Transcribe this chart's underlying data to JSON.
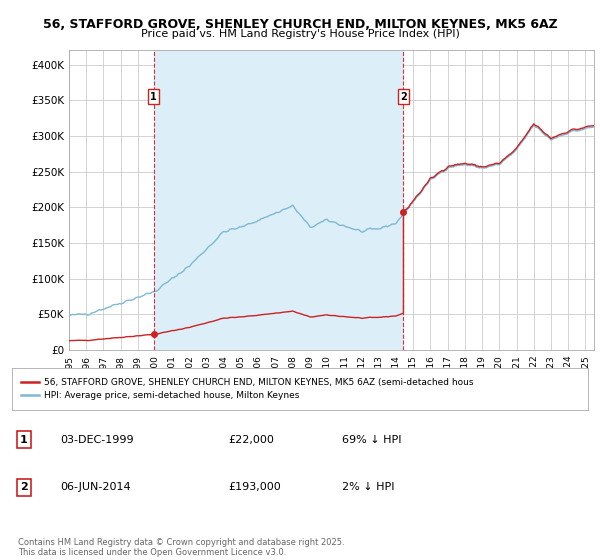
{
  "title": "56, STAFFORD GROVE, SHENLEY CHURCH END, MILTON KEYNES, MK5 6AZ",
  "subtitle": "Price paid vs. HM Land Registry's House Price Index (HPI)",
  "ylim": [
    0,
    420000
  ],
  "yticks": [
    0,
    50000,
    100000,
    150000,
    200000,
    250000,
    300000,
    350000,
    400000
  ],
  "ytick_labels": [
    "£0",
    "£50K",
    "£100K",
    "£150K",
    "£200K",
    "£250K",
    "£300K",
    "£350K",
    "£400K"
  ],
  "hpi_color": "#7eb8d4",
  "hpi_fill_color": "#dceef7",
  "price_color": "#cc2222",
  "dashed_color": "#cc2222",
  "purchase1_date": 1999.92,
  "purchase1_price": 22000,
  "purchase2_date": 2014.43,
  "purchase2_price": 193000,
  "legend_text1": "56, STAFFORD GROVE, SHENLEY CHURCH END, MILTON KEYNES, MK5 6AZ (semi-detached hous",
  "legend_text2": "HPI: Average price, semi-detached house, Milton Keynes",
  "table_row1": [
    "1",
    "03-DEC-1999",
    "£22,000",
    "69% ↓ HPI"
  ],
  "table_row2": [
    "2",
    "06-JUN-2014",
    "£193,000",
    "2% ↓ HPI"
  ],
  "footer": "Contains HM Land Registry data © Crown copyright and database right 2025.\nThis data is licensed under the Open Government Licence v3.0.",
  "background_color": "#ffffff",
  "plot_background": "#ffffff",
  "grid_color": "#cccccc",
  "xmin": 1995.0,
  "xmax": 2025.5
}
